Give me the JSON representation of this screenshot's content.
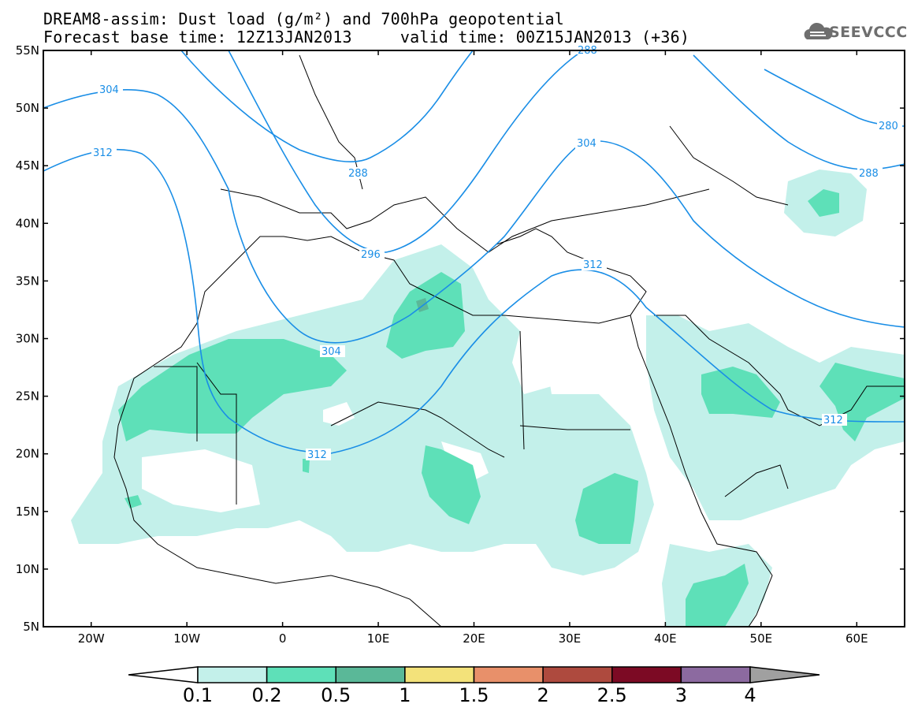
{
  "header": {
    "title_line1": "DREAM8-assim: Dust load (g/m²) and 700hPa geopotential",
    "title_line2": "Forecast base time: 12Z13JAN2013     valid time: 00Z15JAN2013 (+36)"
  },
  "logo": {
    "text": "SEEVCCC",
    "icon": "cloud-icon",
    "color": "#6e6e6e"
  },
  "map": {
    "lon_range": [
      -25,
      65
    ],
    "lat_range": [
      5,
      55
    ],
    "lat_labels": [
      "55N",
      "50N",
      "45N",
      "40N",
      "35N",
      "30N",
      "25N",
      "20N",
      "15N",
      "10N",
      "5N"
    ],
    "lon_labels": [
      "20W",
      "10W",
      "0",
      "10E",
      "20E",
      "30E",
      "40E",
      "50E",
      "60E"
    ],
    "dust_colors": {
      "0.1": "#c3f0ea",
      "0.2": "#5ee0b8",
      "0.5": "#5ab898"
    },
    "contour_color": "#1a8ee6",
    "contour_labels": [
      "304",
      "312",
      "288",
      "296",
      "304",
      "312",
      "304",
      "280",
      "288",
      "312",
      "312",
      "288"
    ]
  },
  "colorbar": {
    "labels": [
      "0.1",
      "0.2",
      "0.5",
      "1",
      "1.5",
      "2",
      "2.5",
      "3",
      "4"
    ],
    "colors": [
      "#ffffff",
      "#c3f0ea",
      "#5ee0b8",
      "#5ab898",
      "#f3e27a",
      "#e8906a",
      "#ae4a3e",
      "#7c0a24",
      "#8c6aa0",
      "#a0a0a0"
    ]
  }
}
